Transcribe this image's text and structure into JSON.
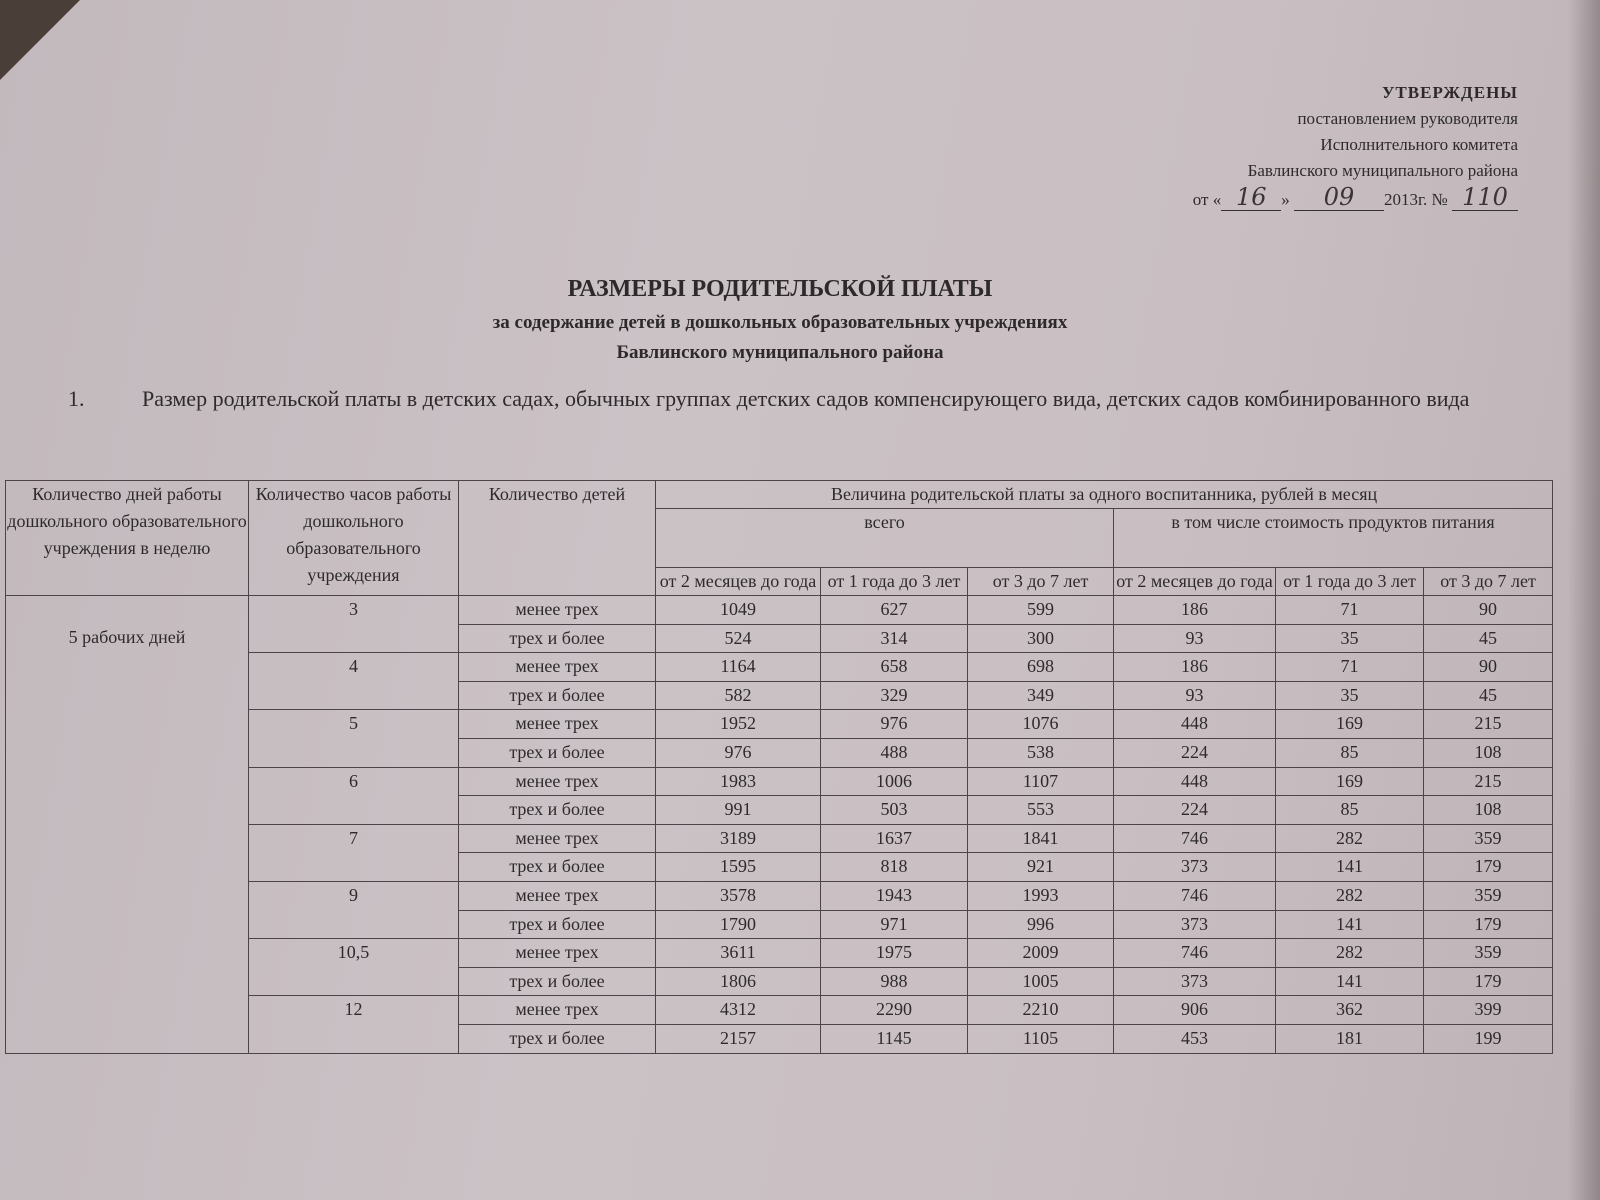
{
  "approval": {
    "title": "УТВЕРЖДЕНЫ",
    "line1": "постановлением руководителя",
    "line2": "Исполнительного комитета",
    "line3": "Бавлинского муниципального района",
    "date_prefix": "от «",
    "day": "16",
    "date_mid": "»",
    "month": "09",
    "year_text": "2013г. №",
    "number": "110"
  },
  "heading": {
    "title": "РАЗМЕРЫ РОДИТЕЛЬСКОЙ ПЛАТЫ",
    "subtitle1": "за содержание детей в дошкольных образовательных учреждениях",
    "subtitle2": "Бавлинского муниципального района"
  },
  "section": {
    "number": "1.",
    "text": "Размер родительской платы в детских садах, обычных группах детских садов компенсирующего вида, детских садов комбинированного вида"
  },
  "table": {
    "headers": {
      "days": "Количество дней работы дошкольного образовательного учреждения в неделю",
      "hours": "Количество часов работы дошкольного образовательного учреждения",
      "children": "Количество детей",
      "fee": "Величина родительской платы за одного воспитанника, рублей в месяц",
      "total": "всего",
      "food": "в том числе стоимость продуктов питания",
      "age1": "от 2 месяцев до года",
      "age2": "от 1 года до 3 лет",
      "age3": "от 3 до 7 лет",
      "food_age1": "от 2 месяцев до года",
      "food_age2": "от 1 года до 3 лет",
      "food_age3": "от 3 до 7 лет"
    },
    "days_value": "5 рабочих дней",
    "groups": [
      {
        "hours": "3",
        "rows": [
          [
            "менее трех",
            "1049",
            "627",
            "599",
            "186",
            "71",
            "90"
          ],
          [
            "трех и более",
            "524",
            "314",
            "300",
            "93",
            "35",
            "45"
          ]
        ]
      },
      {
        "hours": "4",
        "rows": [
          [
            "менее трех",
            "1164",
            "658",
            "698",
            "186",
            "71",
            "90"
          ],
          [
            "трех и более",
            "582",
            "329",
            "349",
            "93",
            "35",
            "45"
          ]
        ]
      },
      {
        "hours": "5",
        "rows": [
          [
            "менее трех",
            "1952",
            "976",
            "1076",
            "448",
            "169",
            "215"
          ],
          [
            "трех и более",
            "976",
            "488",
            "538",
            "224",
            "85",
            "108"
          ]
        ]
      },
      {
        "hours": "6",
        "rows": [
          [
            "менее трех",
            "1983",
            "1006",
            "1107",
            "448",
            "169",
            "215"
          ],
          [
            "трех и более",
            "991",
            "503",
            "553",
            "224",
            "85",
            "108"
          ]
        ]
      },
      {
        "hours": "7",
        "rows": [
          [
            "менее трех",
            "3189",
            "1637",
            "1841",
            "746",
            "282",
            "359"
          ],
          [
            "трех и более",
            "1595",
            "818",
            "921",
            "373",
            "141",
            "179"
          ]
        ]
      },
      {
        "hours": "9",
        "rows": [
          [
            "менее трех",
            "3578",
            "1943",
            "1993",
            "746",
            "282",
            "359"
          ],
          [
            "трех и более",
            "1790",
            "971",
            "996",
            "373",
            "141",
            "179"
          ]
        ]
      },
      {
        "hours": "10,5",
        "rows": [
          [
            "менее трех",
            "3611",
            "1975",
            "2009",
            "746",
            "282",
            "359"
          ],
          [
            "трех и более",
            "1806",
            "988",
            "1005",
            "373",
            "141",
            "179"
          ]
        ]
      },
      {
        "hours": "12",
        "rows": [
          [
            "менее трех",
            "4312",
            "2290",
            "2210",
            "906",
            "362",
            "399"
          ],
          [
            "трех и более",
            "2157",
            "1145",
            "1105",
            "453",
            "181",
            "199"
          ]
        ]
      }
    ]
  }
}
